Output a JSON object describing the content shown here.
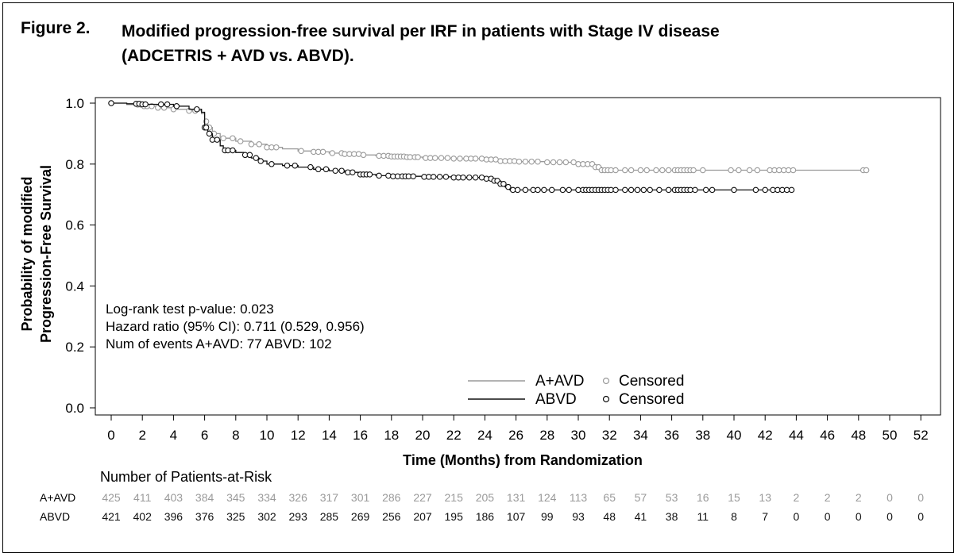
{
  "figure": {
    "label": "Figure 2.",
    "title_line1": "Modified progression-free survival per IRF in patients with Stage IV disease",
    "title_line2": "(ADCETRIS + AVD vs. ABVD)."
  },
  "stats": {
    "line1": "Log-rank test p-value: 0.023",
    "line2": "Hazard ratio (95% CI): 0.711 (0.529, 0.956)",
    "line3": "Num of events  A+AVD: 77  ABVD: 102"
  },
  "legend": {
    "position": "bottom-right",
    "censored_label": "Censored"
  },
  "colors": {
    "aavd": "#9a9a9a",
    "abvd": "#111111"
  },
  "chart_data": {
    "type": "line",
    "xlabel": "Time (Months) from Randomization",
    "ylabel_line1": "Probability of modified",
    "ylabel_line2": "Progression-Free Survival",
    "xlim": [
      0,
      52
    ],
    "ylim": [
      0.0,
      1.0
    ],
    "xticks": [
      0,
      2,
      4,
      6,
      8,
      10,
      12,
      14,
      16,
      18,
      20,
      22,
      24,
      26,
      28,
      30,
      32,
      34,
      36,
      38,
      40,
      42,
      44,
      46,
      48,
      50,
      52
    ],
    "yticks": [
      0.0,
      0.2,
      0.4,
      0.6,
      0.8,
      1.0
    ],
    "ytick_labels": [
      "0.0",
      "0.2",
      "0.4",
      "0.6",
      "0.8",
      "1.0"
    ],
    "grid": false,
    "series": [
      {
        "name": "A+AVD",
        "step_points": [
          [
            0,
            1.0
          ],
          [
            1,
            0.995
          ],
          [
            2,
            0.99
          ],
          [
            3,
            0.985
          ],
          [
            4,
            0.98
          ],
          [
            5,
            0.975
          ],
          [
            5.8,
            0.965
          ],
          [
            6.0,
            0.94
          ],
          [
            6.2,
            0.92
          ],
          [
            6.5,
            0.9
          ],
          [
            7,
            0.885
          ],
          [
            8,
            0.875
          ],
          [
            9,
            0.865
          ],
          [
            10,
            0.855
          ],
          [
            11,
            0.85
          ],
          [
            12,
            0.843
          ],
          [
            13,
            0.84
          ],
          [
            14,
            0.836
          ],
          [
            15,
            0.833
          ],
          [
            16,
            0.83
          ],
          [
            17,
            0.827
          ],
          [
            18,
            0.825
          ],
          [
            19,
            0.823
          ],
          [
            20,
            0.82
          ],
          [
            22,
            0.818
          ],
          [
            24,
            0.815
          ],
          [
            25,
            0.81
          ],
          [
            26,
            0.808
          ],
          [
            28,
            0.806
          ],
          [
            30,
            0.8
          ],
          [
            31,
            0.79
          ],
          [
            31.5,
            0.78
          ],
          [
            44,
            0.78
          ],
          [
            48.5,
            0.78
          ]
        ],
        "censored": [
          0,
          1.7,
          1.9,
          2.1,
          2.3,
          2.6,
          3.0,
          3.4,
          4.0,
          5.0,
          5.4,
          6.1,
          6.3,
          6.6,
          7.2,
          7.8,
          8.3,
          9.0,
          9.5,
          10.0,
          10.3,
          10.6,
          12.2,
          13.0,
          13.3,
          13.6,
          14.2,
          14.8,
          15.0,
          15.3,
          15.6,
          15.9,
          16.2,
          17.2,
          17.5,
          17.8,
          18.0,
          18.2,
          18.4,
          18.6,
          18.8,
          19.0,
          19.2,
          19.5,
          19.7,
          20.2,
          20.5,
          20.8,
          21.2,
          21.6,
          22.0,
          22.4,
          22.8,
          23.1,
          23.4,
          23.8,
          24.1,
          24.4,
          24.7,
          25.0,
          25.3,
          25.6,
          25.9,
          26.2,
          26.6,
          27.0,
          27.4,
          28.0,
          28.4,
          28.8,
          29.2,
          29.7,
          30.0,
          30.3,
          30.6,
          30.9,
          31.1,
          31.3,
          31.5,
          31.7,
          31.9,
          32.1,
          32.4,
          33.0,
          33.4,
          34.0,
          34.4,
          35.0,
          35.4,
          35.8,
          36.2,
          36.4,
          36.6,
          36.8,
          37.0,
          37.2,
          37.4,
          38.0,
          39.8,
          40.3,
          41.0,
          41.5,
          42.3,
          42.6,
          42.9,
          43.2,
          43.5,
          43.8,
          48.3,
          48.5
        ]
      },
      {
        "name": "ABVD",
        "step_points": [
          [
            0,
            1.0
          ],
          [
            1,
            0.998
          ],
          [
            2,
            0.996
          ],
          [
            4,
            0.99
          ],
          [
            5,
            0.98
          ],
          [
            5.8,
            0.97
          ],
          [
            6.0,
            0.92
          ],
          [
            6.2,
            0.9
          ],
          [
            6.5,
            0.88
          ],
          [
            7,
            0.86
          ],
          [
            7.2,
            0.845
          ],
          [
            8,
            0.838
          ],
          [
            8.5,
            0.83
          ],
          [
            9,
            0.82
          ],
          [
            9.5,
            0.81
          ],
          [
            10,
            0.8
          ],
          [
            11,
            0.795
          ],
          [
            12,
            0.79
          ],
          [
            13,
            0.783
          ],
          [
            14,
            0.778
          ],
          [
            15,
            0.773
          ],
          [
            16,
            0.766
          ],
          [
            17,
            0.762
          ],
          [
            18,
            0.76
          ],
          [
            20,
            0.758
          ],
          [
            22,
            0.756
          ],
          [
            24,
            0.752
          ],
          [
            24.5,
            0.745
          ],
          [
            25,
            0.735
          ],
          [
            25.3,
            0.725
          ],
          [
            25.6,
            0.715
          ],
          [
            43.5,
            0.715
          ]
        ],
        "censored": [
          0,
          1.6,
          1.8,
          2.0,
          2.2,
          3.2,
          3.6,
          4.2,
          5.5,
          6.0,
          6.1,
          6.3,
          6.5,
          6.8,
          7.3,
          7.5,
          7.8,
          8.6,
          8.9,
          9.3,
          9.6,
          10.3,
          11.3,
          11.8,
          12.8,
          13.3,
          13.8,
          14.4,
          14.8,
          15.2,
          15.5,
          16.0,
          16.2,
          16.4,
          16.6,
          17.2,
          17.8,
          18.1,
          18.4,
          18.7,
          18.9,
          19.1,
          19.4,
          20.1,
          20.4,
          20.7,
          21.1,
          21.5,
          22.0,
          22.3,
          22.6,
          23.0,
          23.4,
          23.8,
          24.1,
          24.4,
          24.6,
          24.8,
          25.0,
          25.2,
          25.5,
          25.8,
          26.1,
          26.6,
          27.1,
          27.4,
          27.8,
          28.3,
          29.0,
          29.4,
          30.0,
          30.3,
          30.5,
          30.7,
          30.9,
          31.1,
          31.3,
          31.5,
          31.7,
          31.9,
          32.1,
          32.4,
          33.0,
          33.4,
          33.8,
          34.2,
          34.6,
          35.2,
          35.8,
          36.2,
          36.4,
          36.6,
          36.8,
          37.0,
          37.2,
          37.5,
          38.2,
          38.6,
          40.0,
          41.4,
          42.0,
          42.5,
          42.8,
          43.1,
          43.4,
          43.7
        ]
      }
    ],
    "risk_table": {
      "title": "Number of Patients-at-Risk",
      "rows": [
        {
          "label": "A+AVD",
          "values": [
            425,
            411,
            403,
            384,
            345,
            334,
            326,
            317,
            301,
            286,
            227,
            215,
            205,
            131,
            124,
            113,
            65,
            57,
            53,
            16,
            15,
            13,
            2,
            2,
            2,
            0,
            0
          ]
        },
        {
          "label": "ABVD",
          "values": [
            421,
            402,
            396,
            376,
            325,
            302,
            293,
            285,
            269,
            256,
            207,
            195,
            186,
            107,
            99,
            93,
            48,
            41,
            38,
            11,
            8,
            7,
            0,
            0,
            0,
            0,
            0
          ]
        }
      ]
    }
  }
}
